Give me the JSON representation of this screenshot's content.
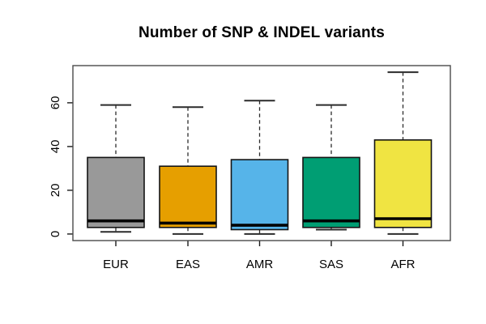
{
  "chart_data": {
    "type": "boxplot",
    "title": "Number of SNP & INDEL variants",
    "xlabel": "",
    "ylabel": "",
    "grid": false,
    "legend": "none",
    "categories": [
      "EUR",
      "EAS",
      "AMR",
      "SAS",
      "AFR"
    ],
    "y_axis": {
      "ticks": [
        0,
        20,
        40,
        60
      ],
      "ylim": [
        -3,
        77
      ],
      "tick_label_rotation": -90
    },
    "series": [
      {
        "name": "EUR",
        "color": "#999999",
        "min": 1,
        "q1": 3,
        "median": 6,
        "q3": 35,
        "max": 59
      },
      {
        "name": "EAS",
        "color": "#E69F00",
        "min": 0,
        "q1": 3,
        "median": 5,
        "q3": 31,
        "max": 58
      },
      {
        "name": "AMR",
        "color": "#56B4E9",
        "min": 0,
        "q1": 2,
        "median": 4,
        "q3": 34,
        "max": 61
      },
      {
        "name": "SAS",
        "color": "#009E73",
        "min": 2,
        "q1": 3,
        "median": 6,
        "q3": 35,
        "max": 59
      },
      {
        "name": "AFR",
        "color": "#F0E442",
        "min": 0,
        "q1": 3,
        "median": 7,
        "q3": 43,
        "max": 74
      }
    ],
    "style_colors": {
      "frame": "#4a4a4a",
      "axis_tick": "#1a1a1a",
      "whisker": "#2b2b2b",
      "box_border": "#141414",
      "median": "#000000"
    }
  }
}
